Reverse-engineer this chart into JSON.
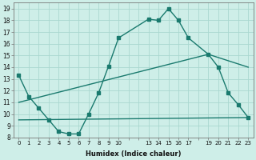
{
  "xlabel": "Humidex (Indice chaleur)",
  "bg_color": "#ceeee8",
  "line_color": "#1a7a6e",
  "grid_color": "#aad8d0",
  "xlim": [
    -0.5,
    23.5
  ],
  "ylim": [
    8,
    19.5
  ],
  "yticks": [
    8,
    9,
    10,
    11,
    12,
    13,
    14,
    15,
    16,
    17,
    18,
    19
  ],
  "xtick_positions": [
    0,
    1,
    2,
    3,
    4,
    5,
    6,
    7,
    8,
    9,
    10,
    11,
    12,
    13,
    14,
    15,
    16,
    17,
    18,
    19,
    20,
    21,
    22,
    23
  ],
  "xtick_labels": [
    "0",
    "1",
    "2",
    "3",
    "4",
    "5",
    "6",
    "7",
    "8",
    "9",
    "10",
    "",
    "",
    "13",
    "14",
    "15",
    "16",
    "17",
    "",
    "19",
    "20",
    "21",
    "22",
    "23"
  ],
  "curve1_x": [
    0,
    1,
    2,
    3,
    4,
    5,
    6,
    7,
    8,
    9,
    10,
    13,
    14,
    15,
    16,
    17,
    19,
    20,
    21,
    22,
    23
  ],
  "curve1_y": [
    13.3,
    11.5,
    10.5,
    9.5,
    8.5,
    8.3,
    8.3,
    10.0,
    11.8,
    14.1,
    16.5,
    18.1,
    18.0,
    19.0,
    18.0,
    16.5,
    15.1,
    14.0,
    11.8,
    10.8,
    9.7
  ],
  "curve2_x": [
    0,
    23
  ],
  "curve2_y": [
    9.5,
    9.7
  ],
  "curve3_x": [
    0,
    19,
    23
  ],
  "curve3_y": [
    11.0,
    15.1,
    14.0
  ],
  "marker_size": 2.5,
  "linewidth": 1.0
}
